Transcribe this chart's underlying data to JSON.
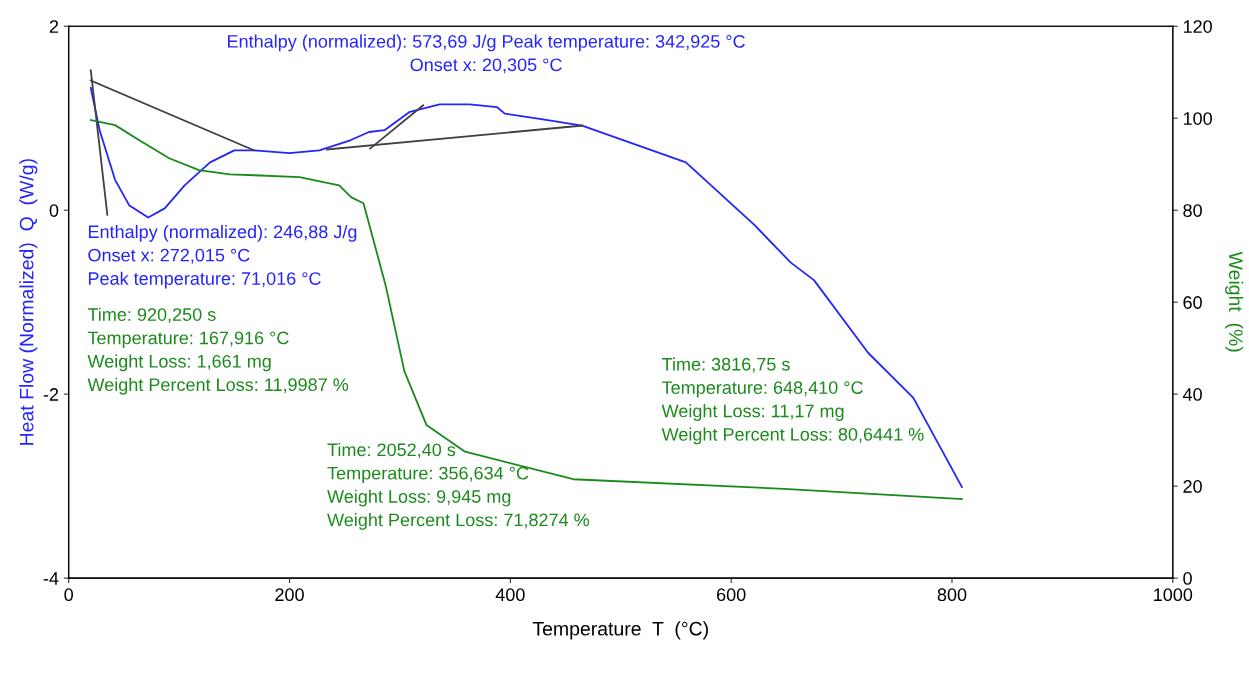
{
  "chart_data": {
    "type": "line",
    "xlabel": "Temperature  T  (°C)",
    "ylabel": "Heat Flow (Normalized)  Q  (W/g)",
    "y2label": "Weight  (%)",
    "xlim": [
      0,
      1000
    ],
    "xticks": [
      0,
      200,
      400,
      600,
      800,
      1000
    ],
    "ylim": [
      -4,
      2
    ],
    "yticks": [
      -4,
      -2,
      0,
      2
    ],
    "y2lim": [
      0,
      120
    ],
    "y2ticks": [
      0,
      20,
      40,
      60,
      80,
      100,
      120
    ],
    "grid": false,
    "series": [
      {
        "color": "#2424ff",
        "x": [
          20,
          28,
          42,
          55,
          72,
          87,
          105,
          128,
          150,
          168,
          200,
          227,
          255,
          272,
          286,
          309,
          336,
          363,
          388,
          395,
          428,
          465,
          559,
          621,
          654,
          675,
          724,
          765,
          809
        ],
        "values": [
          1.33,
          0.87,
          0.33,
          0.05,
          -0.08,
          0.02,
          0.27,
          0.52,
          0.65,
          0.65,
          0.62,
          0.65,
          0.76,
          0.85,
          0.87,
          1.07,
          1.15,
          1.15,
          1.12,
          1.05,
          0.99,
          0.92,
          0.52,
          -0.16,
          -0.57,
          -0.76,
          -1.55,
          -2.04,
          -3.01
        ]
      },
      {
        "color": "#1a8a1a",
        "axis": "y2",
        "x": [
          20,
          42,
          64,
          91,
          118,
          146,
          168,
          209,
          245,
          256,
          267,
          287,
          304,
          324,
          359,
          457,
          648,
          809
        ],
        "values": [
          99.6,
          98.5,
          95.2,
          91.3,
          88.7,
          87.8,
          87.6,
          87.2,
          85.4,
          82.8,
          81.5,
          63.7,
          45.0,
          33.3,
          27.5,
          21.5,
          19.4,
          17.2
        ]
      },
      {
        "color": "#404040",
        "x": [
          20,
          168
        ],
        "values": [
          1.41,
          0.65
        ]
      },
      {
        "color": "#404040",
        "x": [
          234,
          465
        ],
        "values": [
          0.66,
          0.92
        ]
      },
      {
        "color": "#404040",
        "x": [
          20,
          35
        ],
        "values": [
          1.52,
          -0.05
        ]
      },
      {
        "color": "#404040",
        "x": [
          273,
          321
        ],
        "values": [
          0.67,
          1.14
        ]
      }
    ],
    "annotations": [
      "Enthalpy (normalized): 573,69 J/g Peak temperature: 342,925 °C\nOnset x: 20,305 °C",
      "Enthalpy (normalized): 246,88 J/g\nOnset x: 272,015 °C\nPeak temperature: 71,016 °C",
      "Time: 920,250 s\nTemperature: 167,916 °C\nWeight Loss: 1,661 mg\nWeight Percent Loss: 11,9987 %",
      "Time: 2052,40 s\nTemperature: 356,634 °C\nWeight Loss: 9,945 mg\nWeight Percent Loss: 71,8274 %",
      "Time: 3816,75 s\nTemperature: 648,410 °C\nWeight Loss: 11,17 mg\nWeight Percent Loss: 80,6441 %"
    ]
  }
}
